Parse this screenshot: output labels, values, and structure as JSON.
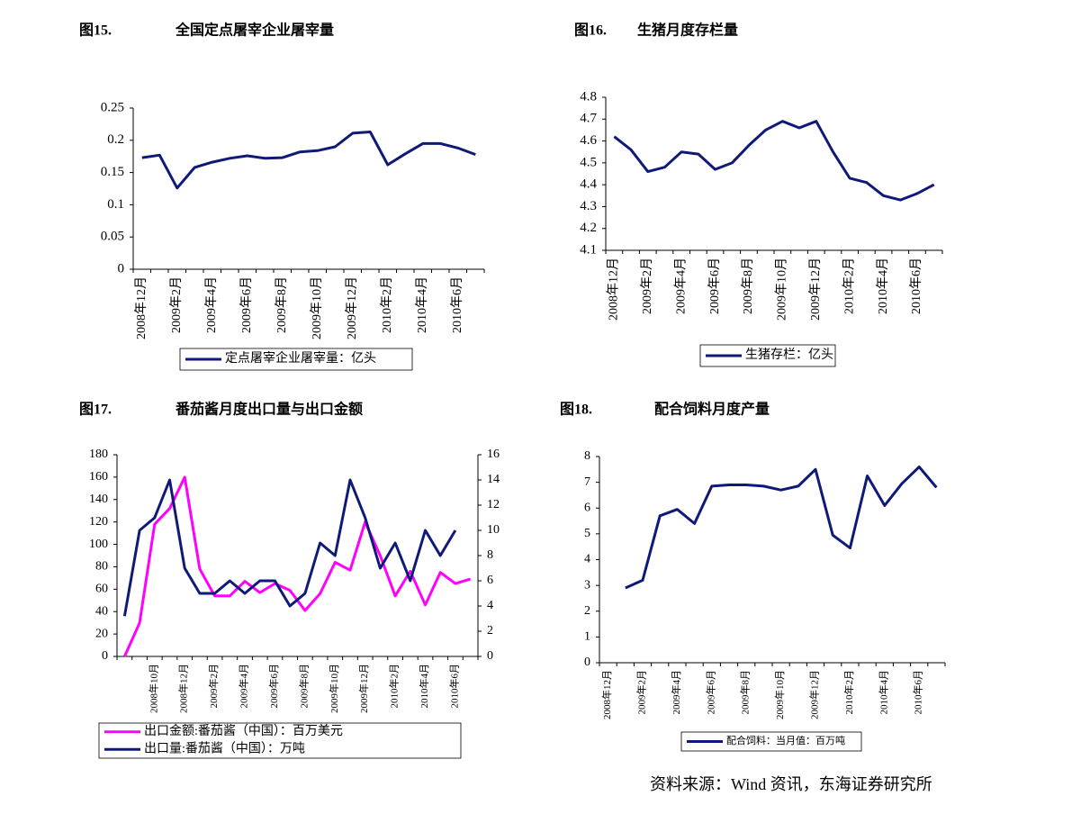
{
  "chart_data": [
    {
      "type": "line",
      "figure_label": "图15.",
      "title": "全国定点屠宰企业屠宰量",
      "categories": [
        "2008年12月",
        null,
        "2009年2月",
        null,
        "2009年4月",
        null,
        "2009年6月",
        null,
        "2009年8月",
        null,
        "2009年10月",
        null,
        "2009年12月",
        null,
        "2010年2月",
        null,
        "2010年4月",
        null,
        "2010年6月",
        null
      ],
      "series": [
        {
          "name": "定点屠宰企业屠宰量：亿头",
          "color": "#0f1a78",
          "values": [
            0.173,
            0.177,
            0.126,
            0.158,
            0.166,
            0.172,
            0.176,
            0.172,
            0.173,
            0.182,
            0.184,
            0.19,
            0.211,
            0.213,
            0.162,
            0.179,
            0.195,
            0.195,
            0.188,
            0.178
          ]
        }
      ],
      "ylim": [
        0,
        0.25
      ],
      "yticks": [
        0,
        0.05,
        0.1,
        0.15,
        0.2,
        0.25
      ]
    },
    {
      "type": "line",
      "figure_label": "图16.",
      "title": "生猪月度存栏量",
      "categories": [
        "2008年12月",
        null,
        "2009年2月",
        null,
        "2009年4月",
        null,
        "2009年6月",
        null,
        "2009年8月",
        null,
        "2009年10月",
        null,
        "2009年12月",
        null,
        "2010年2月",
        null,
        "2010年4月",
        null,
        "2010年6月",
        null
      ],
      "series": [
        {
          "name": "生猪存栏：亿头",
          "color": "#0f1a78",
          "values": [
            4.62,
            4.56,
            4.46,
            4.48,
            4.55,
            4.54,
            4.47,
            4.5,
            4.58,
            4.65,
            4.69,
            4.66,
            4.69,
            4.55,
            4.43,
            4.41,
            4.35,
            4.33,
            4.36,
            4.4
          ]
        }
      ],
      "ylim": [
        4.1,
        4.8
      ],
      "yticks": [
        4.1,
        4.2,
        4.3,
        4.4,
        4.5,
        4.6,
        4.7,
        4.8
      ]
    },
    {
      "type": "line",
      "figure_label": "图17.",
      "title": "番茄酱月度出口量与出口金额",
      "categories": [
        null,
        null,
        "2008年10月",
        null,
        "2008年12月",
        null,
        "2009年2月",
        null,
        "2009年4月",
        null,
        "2009年6月",
        null,
        "2009年8月",
        null,
        "2009年10月",
        null,
        "2009年12月",
        null,
        "2010年2月",
        null,
        "2010年4月",
        null,
        "2010年6月",
        null
      ],
      "series": [
        {
          "name": "出口金额:番茄酱（中国）：百万美元",
          "color": "#ff00ff",
          "values": [
            0,
            30,
            118,
            132,
            160,
            78,
            54,
            54,
            67,
            57,
            65,
            59,
            41,
            56,
            84,
            77,
            120,
            90,
            54,
            76,
            46,
            75,
            65,
            69
          ]
        },
        {
          "name": "出口量:番茄酱（中国）：万吨",
          "color": "#0f1a78",
          "axis": "y2",
          "values": [
            3.2,
            10,
            11,
            14,
            7,
            5,
            5,
            6,
            5,
            6,
            6,
            4,
            5,
            9,
            8,
            14,
            11,
            7,
            9,
            6,
            10,
            8,
            10,
            null
          ]
        }
      ],
      "ylim": [
        0,
        180
      ],
      "yticks": [
        0,
        20,
        40,
        60,
        80,
        100,
        120,
        140,
        160,
        180
      ],
      "y2lim": [
        0,
        16
      ],
      "y2ticks": [
        0,
        2,
        4,
        6,
        8,
        10,
        12,
        14,
        16
      ]
    },
    {
      "type": "line",
      "figure_label": "图18.",
      "title": "配合饲料月度产量",
      "categories": [
        "2008年12月",
        null,
        "2009年2月",
        null,
        "2009年4月",
        null,
        "2009年6月",
        null,
        "2009年8月",
        null,
        "2009年10月",
        null,
        "2009年12月",
        null,
        "2010年2月",
        null,
        "2010年4月",
        null,
        "2010年6月",
        null
      ],
      "series": [
        {
          "name": "配合饲料：当月值：百万吨",
          "color": "#0f1a78",
          "values": [
            null,
            2.9,
            3.2,
            5.7,
            5.95,
            5.4,
            6.85,
            6.9,
            6.9,
            6.85,
            6.7,
            6.85,
            7.5,
            4.95,
            4.45,
            7.25,
            6.1,
            6.95,
            7.6,
            6.8
          ]
        }
      ],
      "ylim": [
        0,
        8
      ],
      "yticks": [
        0,
        1,
        2,
        3,
        4,
        5,
        6,
        7,
        8
      ]
    }
  ],
  "source": "资料来源：Wind 资讯，东海证券研究所"
}
